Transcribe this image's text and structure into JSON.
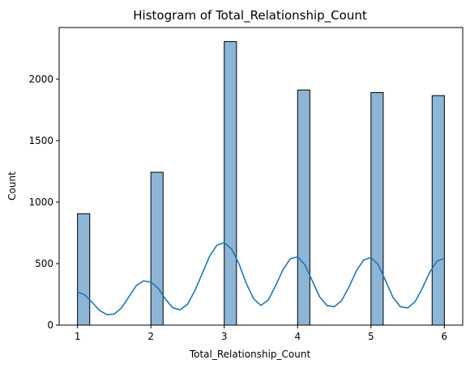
{
  "chart_data": {
    "type": "bar",
    "title": "Histogram of Total_Relationship_Count",
    "xlabel": "Total_Relationship_Count",
    "ylabel": "Count",
    "xlim": [
      0.75,
      6.25
    ],
    "ylim": [
      0,
      2420
    ],
    "x_ticks": [
      1,
      2,
      3,
      4,
      5,
      6
    ],
    "y_ticks": [
      0,
      500,
      1000,
      1500,
      2000
    ],
    "grid": false,
    "legend": "none",
    "bar_color": "#8db5d6",
    "bar_edge_color": "#000000",
    "bins": [
      {
        "start": 1.0,
        "end": 1.1667,
        "count": 906
      },
      {
        "start": 1.1667,
        "end": 1.3333,
        "count": 0
      },
      {
        "start": 1.3333,
        "end": 1.5,
        "count": 0
      },
      {
        "start": 1.5,
        "end": 1.6667,
        "count": 0
      },
      {
        "start": 1.6667,
        "end": 1.8333,
        "count": 0
      },
      {
        "start": 1.8333,
        "end": 2.0,
        "count": 0
      },
      {
        "start": 2.0,
        "end": 2.1667,
        "count": 1243
      },
      {
        "start": 2.1667,
        "end": 2.3333,
        "count": 0
      },
      {
        "start": 2.3333,
        "end": 2.5,
        "count": 0
      },
      {
        "start": 2.5,
        "end": 2.6667,
        "count": 0
      },
      {
        "start": 2.6667,
        "end": 2.8333,
        "count": 0
      },
      {
        "start": 2.8333,
        "end": 3.0,
        "count": 0
      },
      {
        "start": 3.0,
        "end": 3.1667,
        "count": 2305
      },
      {
        "start": 3.1667,
        "end": 3.3333,
        "count": 0
      },
      {
        "start": 3.3333,
        "end": 3.5,
        "count": 0
      },
      {
        "start": 3.5,
        "end": 3.6667,
        "count": 0
      },
      {
        "start": 3.6667,
        "end": 3.8333,
        "count": 0
      },
      {
        "start": 3.8333,
        "end": 4.0,
        "count": 0
      },
      {
        "start": 4.0,
        "end": 4.1667,
        "count": 1912
      },
      {
        "start": 4.1667,
        "end": 4.3333,
        "count": 0
      },
      {
        "start": 4.3333,
        "end": 4.5,
        "count": 0
      },
      {
        "start": 4.5,
        "end": 4.6667,
        "count": 0
      },
      {
        "start": 4.6667,
        "end": 4.8333,
        "count": 0
      },
      {
        "start": 4.8333,
        "end": 5.0,
        "count": 0
      },
      {
        "start": 5.0,
        "end": 5.1667,
        "count": 1891
      },
      {
        "start": 5.1667,
        "end": 5.3333,
        "count": 0
      },
      {
        "start": 5.3333,
        "end": 5.5,
        "count": 0
      },
      {
        "start": 5.5,
        "end": 5.6667,
        "count": 0
      },
      {
        "start": 5.6667,
        "end": 5.8333,
        "count": 0
      },
      {
        "start": 5.8333,
        "end": 6.0,
        "count": 1866
      }
    ],
    "kde": {
      "type": "line",
      "color": "#1f77b4",
      "x": [
        1.0,
        1.1,
        1.2,
        1.3,
        1.4,
        1.5,
        1.6,
        1.7,
        1.8,
        1.9,
        2.0,
        2.1,
        2.2,
        2.3,
        2.4,
        2.5,
        2.6,
        2.7,
        2.8,
        2.9,
        3.0,
        3.1,
        3.2,
        3.3,
        3.4,
        3.5,
        3.6,
        3.7,
        3.8,
        3.9,
        4.0,
        4.1,
        4.2,
        4.3,
        4.4,
        4.5,
        4.6,
        4.7,
        4.8,
        4.9,
        5.0,
        5.1,
        5.2,
        5.3,
        5.4,
        5.5,
        5.6,
        5.7,
        5.8,
        5.9,
        6.0
      ],
      "y": [
        270,
        245,
        185,
        120,
        85,
        90,
        140,
        230,
        320,
        360,
        350,
        300,
        210,
        140,
        125,
        170,
        280,
        420,
        560,
        650,
        670,
        620,
        500,
        340,
        215,
        160,
        205,
        320,
        450,
        540,
        555,
        490,
        360,
        230,
        160,
        150,
        200,
        310,
        440,
        530,
        550,
        490,
        360,
        225,
        150,
        140,
        190,
        300,
        430,
        520,
        545
      ]
    }
  }
}
